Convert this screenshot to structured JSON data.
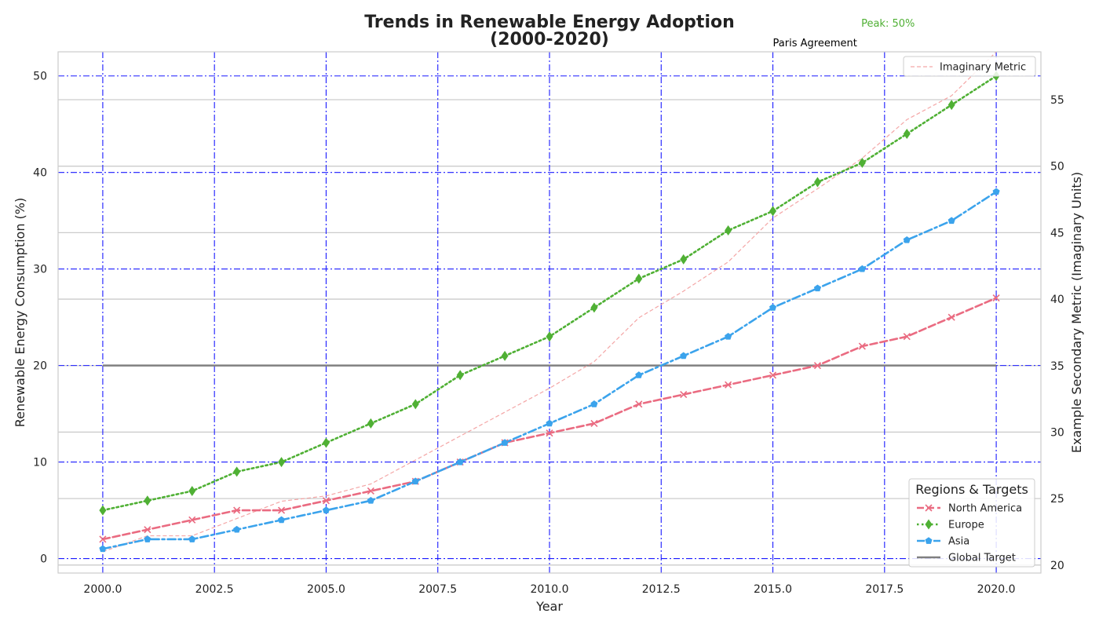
{
  "chart_data": {
    "type": "line",
    "title_line1": "Trends in Renewable Energy Adoption",
    "title_line2": "(2000-2020)",
    "xlabel": "Year",
    "ylabel": "Renewable Energy Consumption (%)",
    "y2label": "Example Secondary Metric (Imaginary Units)",
    "xlim": [
      1999,
      2021
    ],
    "ylim": [
      -1.5,
      52.5
    ],
    "y2lim": [
      19.4,
      58.6
    ],
    "x_ticks": [
      "2000.0",
      "2002.5",
      "2005.0",
      "2007.5",
      "2010.0",
      "2012.5",
      "2015.0",
      "2017.5",
      "2020.0"
    ],
    "y_ticks": [
      "0",
      "10",
      "20",
      "30",
      "40",
      "50"
    ],
    "y2_ticks": [
      "20",
      "25",
      "30",
      "35",
      "40",
      "45",
      "50",
      "55"
    ],
    "grid": "on (blue dash-dot on primary axes, light gray solid on secondary axis)",
    "x": [
      2000,
      2001,
      2002,
      2003,
      2004,
      2005,
      2006,
      2007,
      2008,
      2009,
      2010,
      2011,
      2012,
      2013,
      2014,
      2015,
      2016,
      2017,
      2018,
      2019,
      2020
    ],
    "series": [
      {
        "name": "North America",
        "color": "#ea6b81",
        "marker": "x",
        "style": "dashed",
        "values": [
          2,
          3,
          4,
          5,
          5,
          6,
          7,
          8,
          10,
          12,
          13,
          14,
          16,
          17,
          18,
          19,
          20,
          22,
          23,
          25,
          27
        ]
      },
      {
        "name": "Europe",
        "color": "#4fb034",
        "marker": "diamond",
        "style": "dotted",
        "values": [
          5,
          6,
          7,
          9,
          10,
          12,
          14,
          16,
          19,
          21,
          23,
          26,
          29,
          31,
          34,
          36,
          39,
          41,
          44,
          47,
          50
        ]
      },
      {
        "name": "Asia",
        "color": "#3ba3ec",
        "marker": "pentagon",
        "style": "dashdot",
        "values": [
          1,
          2,
          2,
          3,
          4,
          5,
          6,
          8,
          10,
          12,
          14,
          16,
          19,
          21,
          23,
          26,
          28,
          30,
          33,
          35,
          38
        ]
      },
      {
        "name": "Global Target",
        "color": "#808080",
        "style": "solid",
        "constant": 20
      },
      {
        "name": "Imaginary Metric",
        "color": "#f4a6a6",
        "style": "dashed",
        "axis": "secondary",
        "values": [
          21,
          22.2,
          22.2,
          23.5,
          24.8,
          25.2,
          26.1,
          27.9,
          29.7,
          31.5,
          33.3,
          35.3,
          38.6,
          40.6,
          42.8,
          46.1,
          48.3,
          50.6,
          53.5,
          55.3,
          58.6
        ]
      }
    ],
    "legend": {
      "title": "Regions & Targets",
      "placement": "lower-right",
      "entries": [
        "North America",
        "Europe",
        "Asia",
        "Global Target"
      ]
    },
    "legend2": {
      "placement": "upper-right",
      "entries": [
        "Imaginary Metric"
      ]
    },
    "annotations": [
      {
        "text": "Paris Agreement",
        "x": 2015,
        "color": "#000000"
      },
      {
        "text": "Peak: 50%",
        "x": 2020,
        "y": 50,
        "color": "#4fb034"
      }
    ]
  }
}
